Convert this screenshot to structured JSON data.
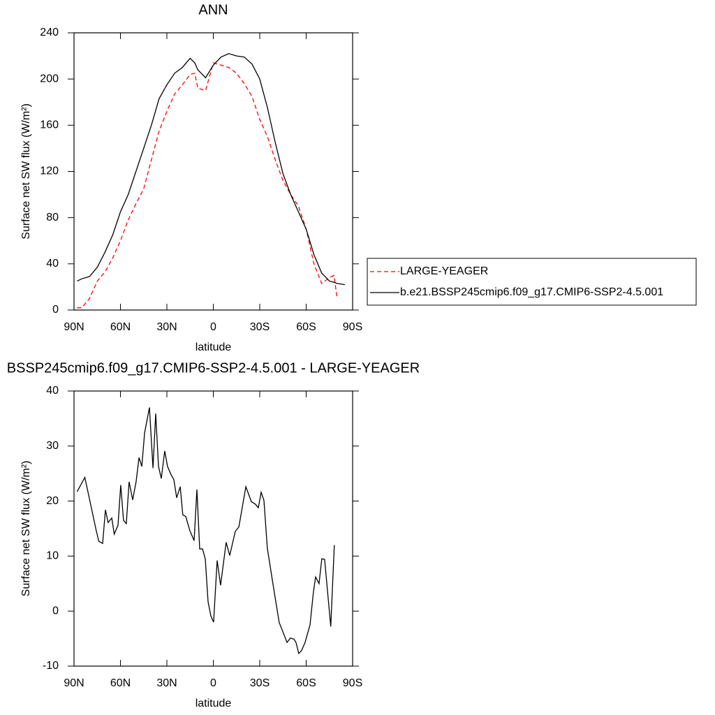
{
  "chart_data": [
    {
      "type": "line",
      "title": "ANN",
      "xlabel": "latitude",
      "ylabel": "Surface net SW flux (W/m²)",
      "xlim": [
        90,
        -90
      ],
      "ylim": [
        0,
        240
      ],
      "xticks": [
        {
          "value": 90,
          "label": "90N"
        },
        {
          "value": 60,
          "label": "60N"
        },
        {
          "value": 30,
          "label": "30N"
        },
        0,
        {
          "value": -30,
          "label": "30S"
        },
        {
          "value": -60,
          "label": "60S"
        },
        {
          "value": -90,
          "label": "90S"
        }
      ],
      "yticks": [
        0,
        40,
        80,
        120,
        160,
        200,
        240
      ],
      "x": [
        88,
        85,
        80,
        75,
        70,
        65,
        60,
        55,
        50,
        45,
        40,
        35,
        30,
        25,
        20,
        15,
        12,
        10,
        5,
        0,
        -5,
        -10,
        -15,
        -20,
        -25,
        -30,
        -35,
        -40,
        -45,
        -50,
        -55,
        -60,
        -65,
        -70,
        -75,
        -78,
        -80,
        -85
      ],
      "series": [
        {
          "name": "LARGE-YEAGER",
          "color": "#ff0000",
          "dashed": true,
          "values": [
            2,
            2,
            10,
            25,
            33,
            45,
            60,
            78,
            92,
            105,
            130,
            155,
            172,
            187,
            195,
            204,
            205,
            192,
            190,
            214,
            212,
            210,
            205,
            196,
            185,
            165,
            150,
            130,
            112,
            100,
            90,
            70,
            40,
            23,
            28,
            30,
            10,
            null
          ]
        },
        {
          "name": "b.e21.BSSP245cmip6.f09_g17.CMIP6-SSP2-4.5.001",
          "color": "#000000",
          "dashed": false,
          "values": [
            25,
            27,
            29,
            37,
            50,
            65,
            85,
            100,
            120,
            140,
            160,
            183,
            195,
            205,
            210,
            218,
            214,
            208,
            201,
            212,
            219,
            222,
            220,
            219,
            213,
            200,
            175,
            145,
            118,
            100,
            85,
            70,
            48,
            32,
            25,
            24,
            23,
            22
          ]
        }
      ],
      "legend": "right"
    },
    {
      "type": "line",
      "title": "BSSP245cmip6.f09_g17.CMIP6-SSP2-4.5.001 - LARGE-YEAGER",
      "xlabel": "latitude",
      "ylabel": "Surface net SW flux (W/m²)",
      "xlim": [
        90,
        -90
      ],
      "ylim": [
        -10,
        40
      ],
      "xticks": [
        {
          "value": 90,
          "label": "90N"
        },
        {
          "value": 60,
          "label": "60N"
        },
        {
          "value": 30,
          "label": "30N"
        },
        0,
        {
          "value": -30,
          "label": "30S"
        },
        {
          "value": -60,
          "label": "60S"
        },
        {
          "value": -90,
          "label": "90S"
        }
      ],
      "yticks": [
        -10,
        0,
        10,
        20,
        30,
        40
      ],
      "x": [
        88,
        83,
        80.5,
        75.6,
        74,
        71.5,
        69.7,
        68,
        65.6,
        64,
        61.6,
        59.8,
        58,
        56.2,
        54.4,
        52.1,
        49.9,
        48,
        46.2,
        44.4,
        41.3,
        39,
        37.2,
        35.4,
        33.6,
        31.4,
        29.6,
        27.3,
        25.5,
        23.7,
        21.4,
        19.7,
        17.8,
        15.1,
        12.4,
        10.6,
        8.8,
        7,
        5.2,
        3.4,
        1.6,
        -0.2,
        -2.5,
        -4.7,
        -8.3,
        -10.6,
        -14.2,
        -16.5,
        -18.2,
        -21,
        -24.6,
        -27.3,
        -29.1,
        -30.9,
        -32.7,
        -34.9,
        -39.5,
        -42.6,
        -44.9,
        -47.6,
        -49.8,
        -52.1,
        -53.4,
        -55.2,
        -57,
        -59.3,
        -62.5,
        -64.7,
        -66.1,
        -68.3,
        -70.1,
        -71.9,
        -75.9,
        -78.2
      ],
      "series": [
        {
          "color": "#000000",
          "dashed": false,
          "values": [
            21.7,
            24.3,
            21,
            14.6,
            12.7,
            12.3,
            18.4,
            16.1,
            16.9,
            14,
            15.6,
            22.9,
            16.5,
            15.9,
            23.5,
            20.2,
            23.5,
            27.9,
            26.3,
            32.4,
            37,
            26,
            35.9,
            26.3,
            24.1,
            29.1,
            26.3,
            24.8,
            23.9,
            20.6,
            22.6,
            17.5,
            17.2,
            14.6,
            12.8,
            22.1,
            11.3,
            11.3,
            9.5,
            1.7,
            -0.9,
            -2,
            9.2,
            4.7,
            12.5,
            10.1,
            14.5,
            15.3,
            18,
            22.6,
            19.9,
            19.4,
            18.8,
            21.6,
            20.1,
            11.4,
            3.2,
            -2.1,
            -3.7,
            -5.7,
            -4.9,
            -5.1,
            -5.7,
            -7.7,
            -7.2,
            -5.7,
            -2.5,
            3.5,
            6.2,
            5,
            9.5,
            9.4,
            -2.8,
            12
          ]
        }
      ]
    }
  ]
}
